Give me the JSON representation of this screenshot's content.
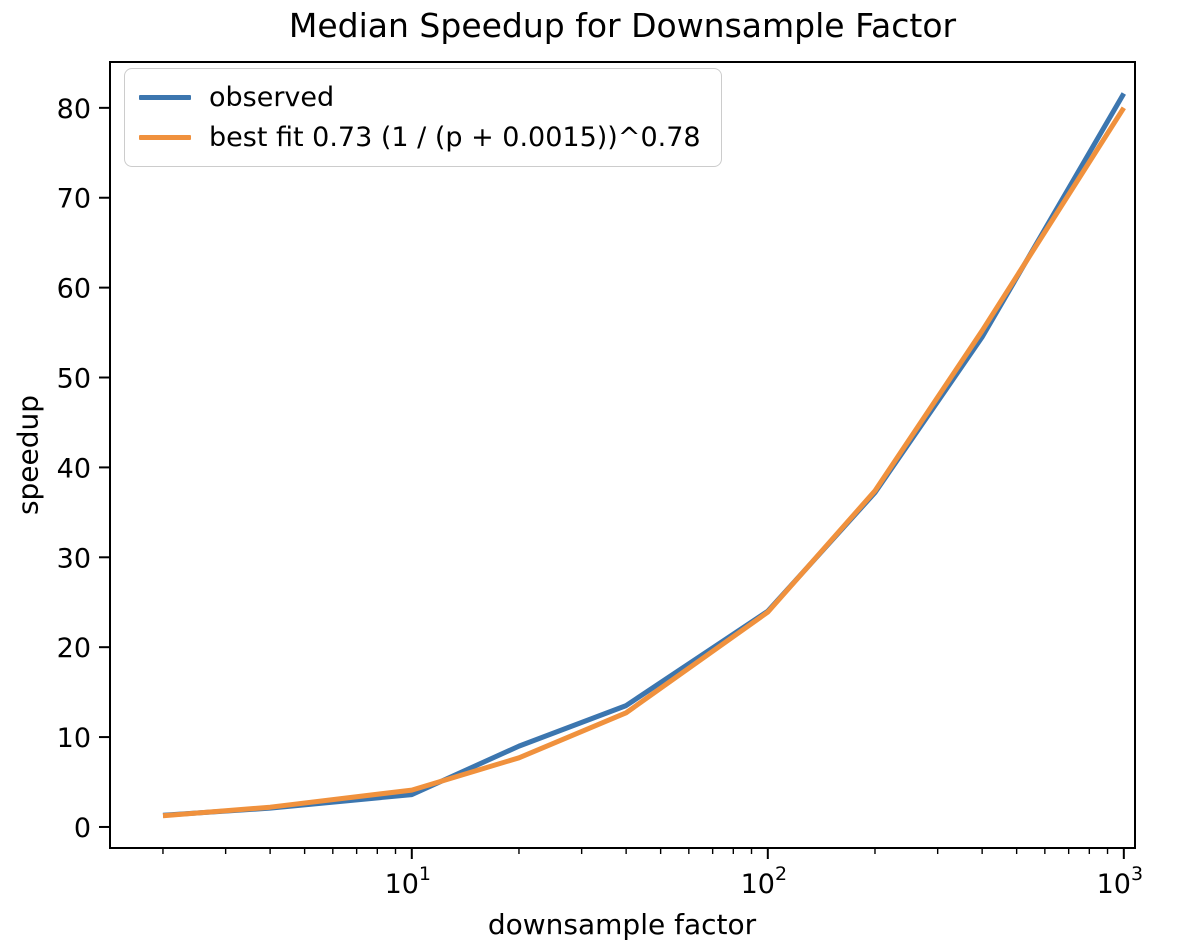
{
  "chart_data": {
    "type": "line",
    "title": "Median Speedup for Downsample Factor",
    "xlabel": "downsample factor",
    "ylabel": "speedup",
    "xscale": "log",
    "grid": false,
    "legend_position": "upper left",
    "xlim": [
      1.42,
      1075
    ],
    "ylim": [
      -2.34,
      85.1
    ],
    "x": [
      2,
      4,
      10,
      20,
      40,
      100,
      200,
      400,
      1000
    ],
    "series": [
      {
        "key": "observed",
        "name": "observed",
        "color": "#3c76af",
        "values": [
          1.3,
          2.1,
          3.6,
          9.0,
          13.5,
          24.0,
          37.2,
          54.5,
          81.6
        ]
      },
      {
        "key": "best-fit",
        "name": "best fit 0.73 (1 / (p + 0.0015))^0.78",
        "color": "#f0913d",
        "values": [
          1.25,
          2.2,
          4.1,
          7.7,
          12.7,
          23.9,
          37.4,
          55.2,
          80.0
        ]
      }
    ],
    "yticks": [
      0,
      10,
      20,
      30,
      40,
      50,
      60,
      70,
      80
    ],
    "xticks": [
      {
        "base": "10",
        "exp": "1",
        "value": 10
      },
      {
        "base": "10",
        "exp": "2",
        "value": 100
      },
      {
        "base": "10",
        "exp": "3",
        "value": 1000
      }
    ]
  }
}
